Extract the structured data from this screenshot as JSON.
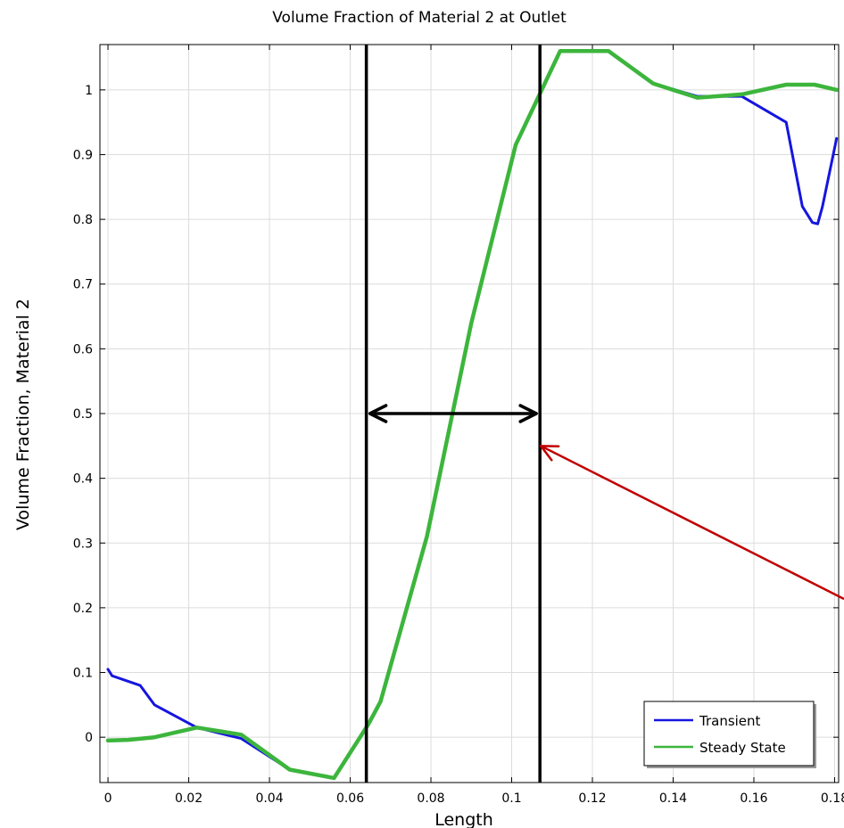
{
  "chart_data": {
    "type": "line",
    "title": "Volume Fraction of Material 2 at Outlet",
    "xlabel": "Length",
    "ylabel": "Volume Fraction, Material 2",
    "xlim": [
      -0.002,
      0.181
    ],
    "ylim": [
      -0.07,
      1.07
    ],
    "x_ticks": [
      0,
      0.02,
      0.04,
      0.06,
      0.08,
      0.1,
      0.12,
      0.14,
      0.16,
      0.18
    ],
    "x_tick_labels": [
      "0",
      "0.02",
      "0.04",
      "0.06",
      "0.08",
      "0.1",
      "0.12",
      "0.14",
      "0.16",
      "0.18"
    ],
    "y_ticks": [
      0,
      0.1,
      0.2,
      0.3,
      0.4,
      0.5,
      0.6,
      0.7,
      0.8,
      0.9,
      1
    ],
    "y_tick_labels": [
      "0",
      "0.1",
      "0.2",
      "0.3",
      "0.4",
      "0.5",
      "0.6",
      "0.7",
      "0.8",
      "0.9",
      "1"
    ],
    "grid": true,
    "legend_position": "bottom-right",
    "series": [
      {
        "name": "Transient",
        "color": "#1515e0",
        "x": [
          0,
          0.0005,
          0.001,
          0.008,
          0.0115,
          0.022,
          0.033,
          0.045,
          0.056,
          0.0645,
          0.0675,
          0.079,
          0.09,
          0.101,
          0.112,
          0.124,
          0.135,
          0.146,
          0.157,
          0.168,
          0.172,
          0.1745,
          0.1758,
          0.177,
          0.1805
        ],
        "values": [
          0.105,
          0.1,
          0.095,
          0.08,
          0.05,
          0.015,
          -0.002,
          -0.05,
          -0.063,
          0.02,
          0.055,
          0.31,
          0.64,
          0.915,
          1.06,
          1.06,
          1.01,
          0.99,
          0.99,
          0.95,
          0.82,
          0.795,
          0.793,
          0.82,
          0.925
        ]
      },
      {
        "name": "Steady State",
        "color": "#3cb53c",
        "x": [
          0,
          0.005,
          0.0115,
          0.022,
          0.033,
          0.045,
          0.056,
          0.0645,
          0.0675,
          0.079,
          0.09,
          0.101,
          0.112,
          0.124,
          0.135,
          0.146,
          0.157,
          0.168,
          0.175,
          0.1805
        ],
        "values": [
          -0.005,
          -0.004,
          0.0,
          0.015,
          0.004,
          -0.05,
          -0.063,
          0.02,
          0.055,
          0.31,
          0.64,
          0.915,
          1.06,
          1.06,
          1.01,
          0.988,
          0.993,
          1.008,
          1.008,
          1.0
        ]
      }
    ],
    "annotations": {
      "vertical_lines_x": [
        0.064,
        0.107
      ],
      "double_arrow": {
        "x_start": 0.064,
        "x_end": 0.107,
        "y": 0.5
      },
      "red_arrow": {
        "tip_x": 0.107,
        "tip_y": 0.45,
        "color": "#c00000"
      }
    }
  }
}
